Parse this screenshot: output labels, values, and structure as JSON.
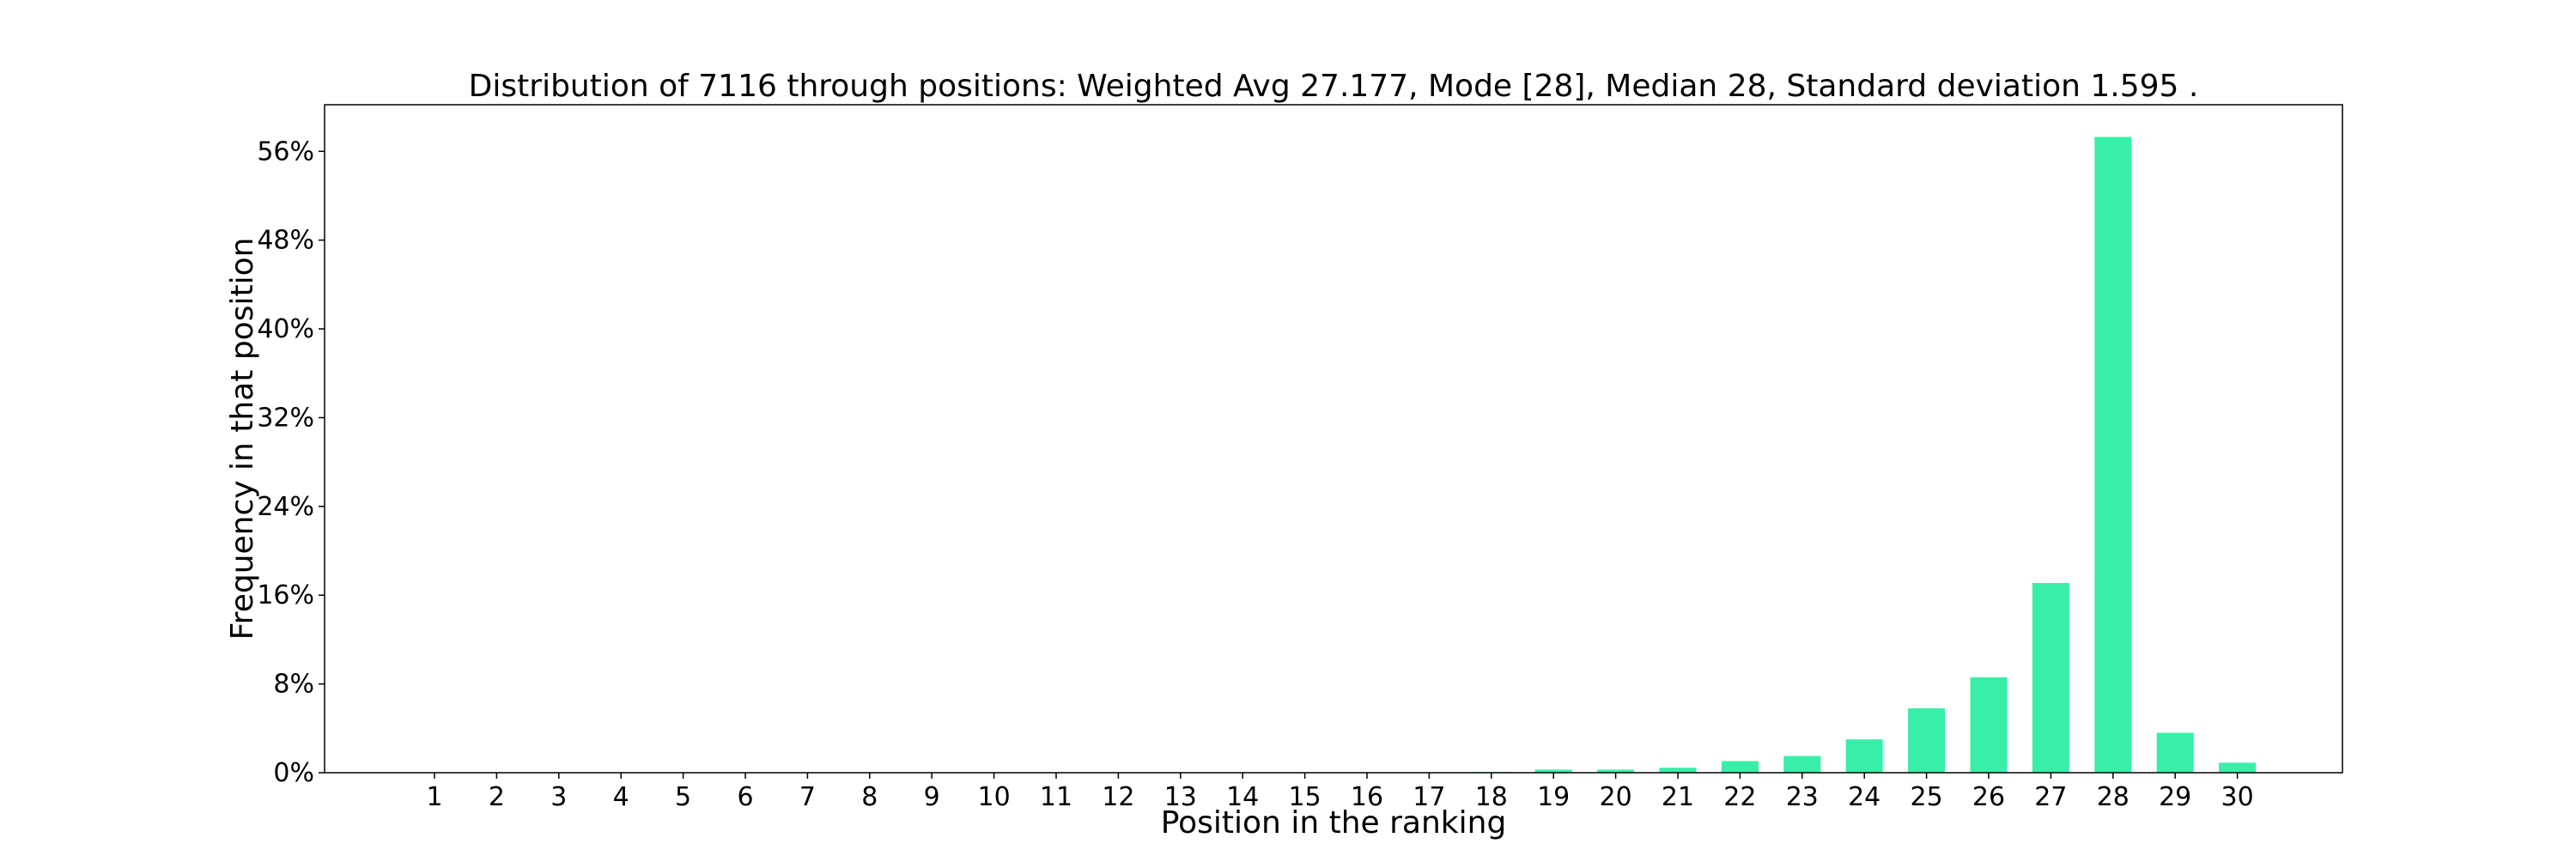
{
  "chart_data": {
    "type": "bar",
    "title": "Distribution of 7116 through positions: Weighted Avg 27.177, Mode [28], Median 28, Standard deviation 1.595 .",
    "xlabel": "Position in the ranking",
    "ylabel": "Frequency in that position",
    "categories": [
      "1",
      "2",
      "3",
      "4",
      "5",
      "6",
      "7",
      "8",
      "9",
      "10",
      "11",
      "12",
      "13",
      "14",
      "15",
      "16",
      "17",
      "18",
      "19",
      "20",
      "21",
      "22",
      "23",
      "24",
      "25",
      "26",
      "27",
      "28",
      "29",
      "30"
    ],
    "values": [
      0,
      0,
      0,
      0,
      0,
      0,
      0,
      0,
      0,
      0,
      0,
      0,
      0,
      0,
      0,
      0,
      0.03,
      0.06,
      0.28,
      0.28,
      0.45,
      1.05,
      1.5,
      3.0,
      5.8,
      8.6,
      17.1,
      57.3,
      3.6,
      0.9
    ],
    "yticks": [
      0,
      8,
      16,
      24,
      32,
      40,
      48,
      56
    ],
    "ytick_suffix": "%",
    "ylim": [
      0,
      60.2
    ],
    "bar_color": "#37efa8",
    "grid": false,
    "legend": "none"
  }
}
